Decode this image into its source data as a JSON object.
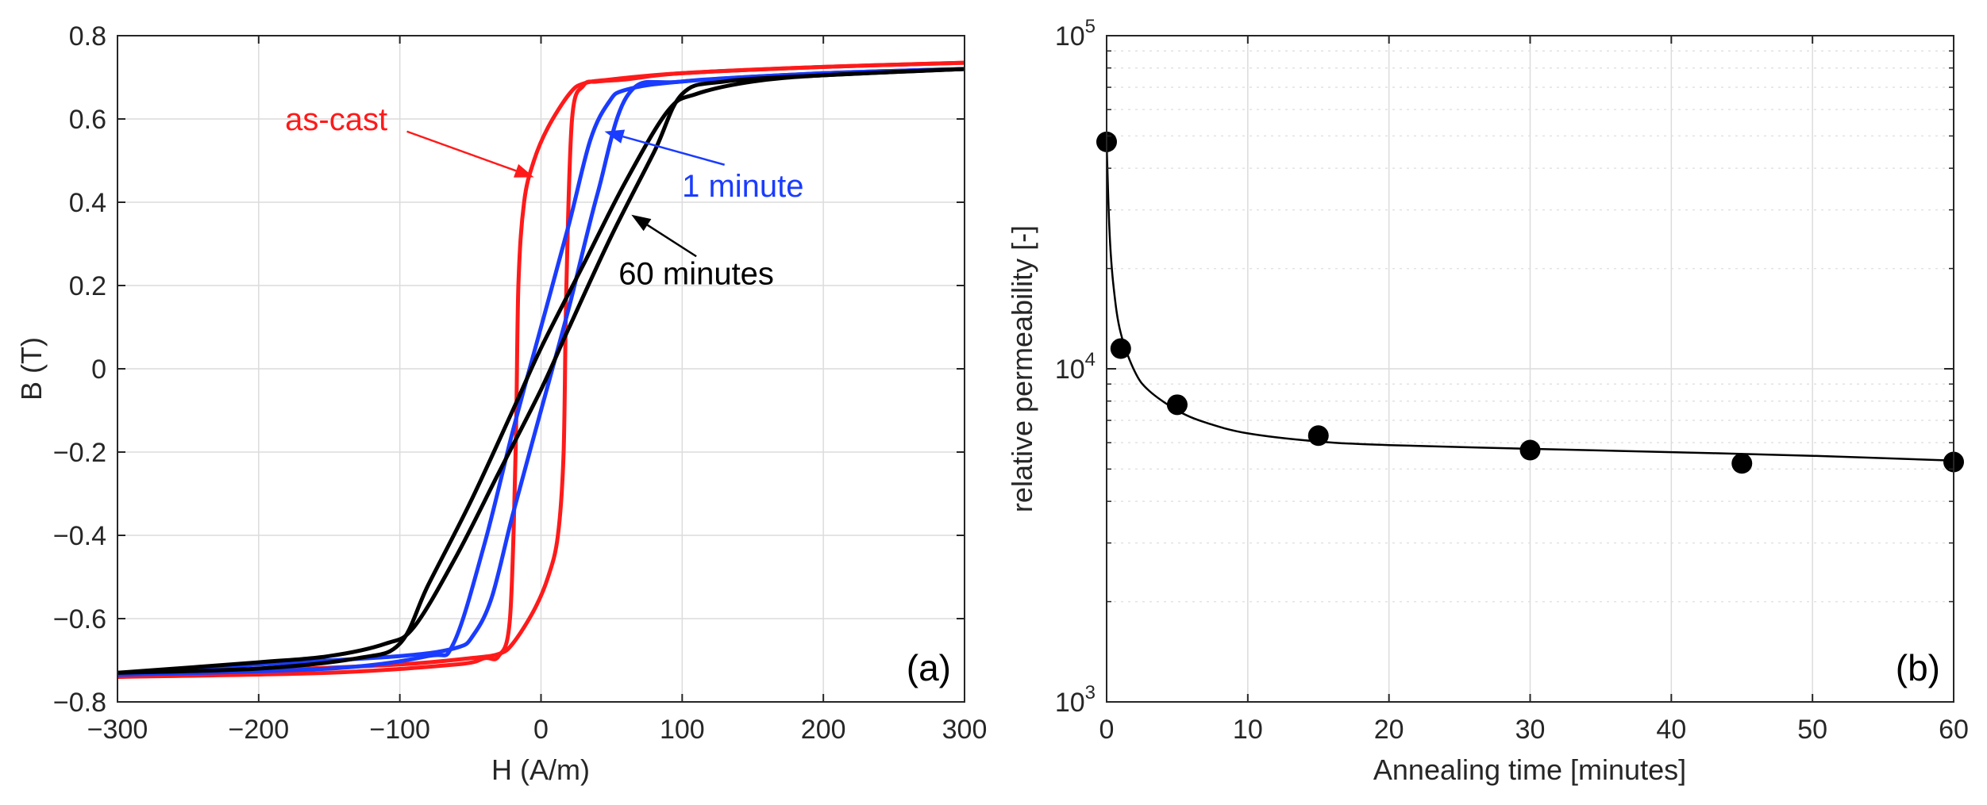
{
  "chart_data": [
    {
      "id": "a",
      "type": "line",
      "panel_label": "(a)",
      "xlabel": "H (A/m)",
      "ylabel": "B (T)",
      "xlim": [
        -300,
        300
      ],
      "ylim": [
        -0.8,
        0.8
      ],
      "xticks": [
        -300,
        -200,
        -100,
        0,
        100,
        200,
        300
      ],
      "xtick_labels": [
        "−300",
        "−200",
        "−100",
        "0",
        "100",
        "200",
        "300"
      ],
      "yticks": [
        0.8,
        0.6,
        0.4,
        0.2,
        0,
        -0.2,
        -0.4,
        -0.6,
        -0.8
      ],
      "ytick_labels": [
        "0.8",
        "0.6",
        "0.4",
        "0.2",
        "0",
        "−0.2",
        "−0.4",
        "−0.6",
        "−0.8"
      ],
      "grid": true,
      "series": [
        {
          "name": "as-cast",
          "color": "#ff1a1a",
          "upper_branch": [
            [
              -300,
              -0.74
            ],
            [
              -150,
              -0.73
            ],
            [
              -60,
              -0.71
            ],
            [
              -40,
              -0.695
            ],
            [
              -30,
              -0.69
            ],
            [
              -22,
              -0.6
            ],
            [
              -18,
              -0.2
            ],
            [
              -16,
              0.2
            ],
            [
              -12,
              0.4
            ],
            [
              -5,
              0.5
            ],
            [
              5,
              0.58
            ],
            [
              20,
              0.66
            ],
            [
              30,
              0.685
            ],
            [
              50,
              0.695
            ],
            [
              100,
              0.71
            ],
            [
              200,
              0.725
            ],
            [
              300,
              0.735
            ]
          ],
          "lower_branch": [
            [
              300,
              0.735
            ],
            [
              200,
              0.725
            ],
            [
              100,
              0.71
            ],
            [
              60,
              0.695
            ],
            [
              40,
              0.69
            ],
            [
              30,
              0.68
            ],
            [
              22,
              0.6
            ],
            [
              18,
              0.2
            ],
            [
              16,
              -0.2
            ],
            [
              12,
              -0.4
            ],
            [
              5,
              -0.5
            ],
            [
              -5,
              -0.58
            ],
            [
              -20,
              -0.66
            ],
            [
              -30,
              -0.685
            ],
            [
              -50,
              -0.695
            ],
            [
              -100,
              -0.71
            ],
            [
              -200,
              -0.725
            ],
            [
              -300,
              -0.74
            ]
          ]
        },
        {
          "name": "1 minute",
          "color": "#1a3cff",
          "upper_branch": [
            [
              -300,
              -0.735
            ],
            [
              -150,
              -0.72
            ],
            [
              -80,
              -0.69
            ],
            [
              -62,
              -0.66
            ],
            [
              -40,
              -0.42
            ],
            [
              -20,
              -0.15
            ],
            [
              0,
              0.1
            ],
            [
              20,
              0.35
            ],
            [
              35,
              0.55
            ],
            [
              48,
              0.64
            ],
            [
              60,
              0.67
            ],
            [
              100,
              0.69
            ],
            [
              200,
              0.71
            ],
            [
              300,
              0.72
            ]
          ],
          "lower_branch": [
            [
              300,
              0.72
            ],
            [
              200,
              0.71
            ],
            [
              100,
              0.69
            ],
            [
              62,
              0.66
            ],
            [
              40,
              0.42
            ],
            [
              20,
              0.15
            ],
            [
              0,
              -0.1
            ],
            [
              -20,
              -0.35
            ],
            [
              -35,
              -0.55
            ],
            [
              -48,
              -0.64
            ],
            [
              -60,
              -0.67
            ],
            [
              -100,
              -0.69
            ],
            [
              -200,
              -0.71
            ],
            [
              -300,
              -0.735
            ]
          ]
        },
        {
          "name": "60 minutes",
          "color": "#000000",
          "upper_branch": [
            [
              -300,
              -0.73
            ],
            [
              -200,
              -0.72
            ],
            [
              -130,
              -0.695
            ],
            [
              -100,
              -0.66
            ],
            [
              -80,
              -0.52
            ],
            [
              -50,
              -0.32
            ],
            [
              -20,
              -0.1
            ],
            [
              0,
              0.05
            ],
            [
              30,
              0.25
            ],
            [
              60,
              0.45
            ],
            [
              90,
              0.62
            ],
            [
              110,
              0.66
            ],
            [
              150,
              0.69
            ],
            [
              200,
              0.705
            ],
            [
              300,
              0.72
            ]
          ],
          "lower_branch": [
            [
              300,
              0.72
            ],
            [
              200,
              0.705
            ],
            [
              130,
              0.69
            ],
            [
              100,
              0.66
            ],
            [
              80,
              0.52
            ],
            [
              50,
              0.32
            ],
            [
              20,
              0.1
            ],
            [
              0,
              -0.05
            ],
            [
              -30,
              -0.25
            ],
            [
              -60,
              -0.45
            ],
            [
              -90,
              -0.62
            ],
            [
              -110,
              -0.66
            ],
            [
              -150,
              -0.69
            ],
            [
              -200,
              -0.705
            ],
            [
              -300,
              -0.73
            ]
          ]
        }
      ],
      "annotations": [
        {
          "text": "as-cast",
          "color": "#ff1a1a",
          "label_at": [
            -145,
            0.6
          ],
          "arrow_from": [
            -95,
            0.57
          ],
          "arrow_to": [
            -5,
            0.46
          ]
        },
        {
          "text": "1 minute",
          "color": "#1a3cff",
          "label_at": [
            143,
            0.44
          ],
          "arrow_from": [
            130,
            0.49
          ],
          "arrow_to": [
            45,
            0.57
          ]
        },
        {
          "text": "60 minutes",
          "color": "#000000",
          "label_at": [
            110,
            0.23
          ],
          "arrow_from": [
            110,
            0.27
          ],
          "arrow_to": [
            64,
            0.37
          ]
        }
      ]
    },
    {
      "id": "b",
      "type": "scatter",
      "panel_label": "(b)",
      "xlabel": "Annealing time [minutes]",
      "ylabel": "relative permeability [-]",
      "xlim": [
        0,
        60
      ],
      "ylim": [
        1000,
        100000
      ],
      "yscale": "log",
      "xticks": [
        0,
        10,
        20,
        30,
        40,
        50,
        60
      ],
      "xtick_labels": [
        "0",
        "10",
        "20",
        "30",
        "40",
        "50",
        "60"
      ],
      "yticks": [
        1000,
        10000,
        100000
      ],
      "ytick_labels": [
        {
          "base": "10",
          "exp": "3"
        },
        {
          "base": "10",
          "exp": "4"
        },
        {
          "base": "10",
          "exp": "5"
        }
      ],
      "grid": true,
      "points": {
        "x": [
          0,
          1,
          5,
          15,
          30,
          45,
          60
        ],
        "y": [
          48000,
          11500,
          7800,
          6300,
          5700,
          5200,
          5250
        ]
      },
      "fit_curve": {
        "x": [
          0,
          0.2,
          0.5,
          1,
          2,
          3,
          5,
          7,
          10,
          15,
          20,
          30,
          40,
          50,
          60
        ],
        "y": [
          48000,
          26000,
          17500,
          12800,
          9800,
          8600,
          7500,
          6900,
          6400,
          6050,
          5900,
          5750,
          5620,
          5480,
          5300
        ]
      }
    }
  ]
}
